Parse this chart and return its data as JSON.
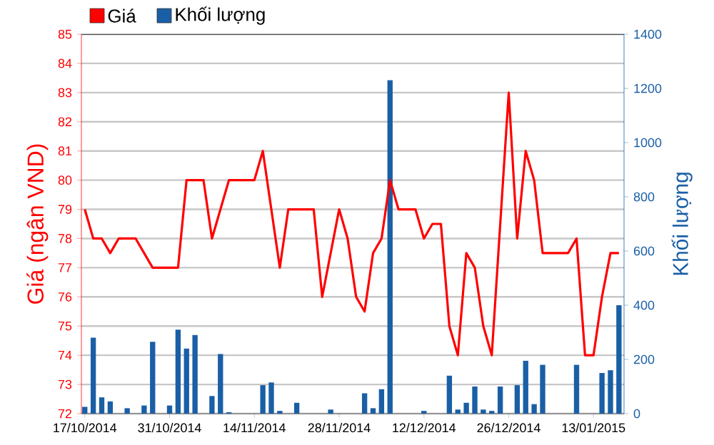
{
  "chart_data": {
    "type": "bar",
    "categories": [
      "17/10/2014",
      null,
      null,
      null,
      null,
      null,
      null,
      null,
      null,
      null,
      "31/10/2014",
      null,
      null,
      null,
      null,
      null,
      null,
      null,
      null,
      null,
      "14/11/2014",
      null,
      null,
      null,
      null,
      null,
      null,
      null,
      null,
      null,
      "28/11/2014",
      null,
      null,
      null,
      null,
      null,
      null,
      null,
      null,
      null,
      "12/12/2014",
      null,
      null,
      null,
      null,
      null,
      null,
      null,
      null,
      null,
      "26/12/2014",
      null,
      null,
      null,
      null,
      null,
      null,
      null,
      null,
      null,
      "13/01/2015",
      null,
      null,
      null
    ],
    "series": [
      {
        "name": "Giá",
        "type": "line",
        "color": "#ff0000",
        "values": [
          79,
          78,
          78,
          77.5,
          78,
          78,
          78,
          77.5,
          77,
          77,
          77,
          77,
          80,
          80,
          80,
          78,
          79,
          80,
          80,
          80,
          80,
          81,
          79,
          77,
          79,
          79,
          79,
          79,
          76,
          77.5,
          79,
          78,
          76,
          75.5,
          77.5,
          78,
          80,
          79,
          79,
          79,
          78,
          78.5,
          78.5,
          75,
          74,
          77.5,
          77,
          75,
          74,
          78.5,
          83,
          78,
          81,
          80,
          77.5,
          77.5,
          77.5,
          77.5,
          78,
          74,
          74,
          76,
          77.5,
          77.5
        ]
      },
      {
        "name": "Khối lượng",
        "type": "bar",
        "axis": "y2",
        "color": "#1a5fa6",
        "values": [
          25,
          280,
          60,
          45,
          null,
          20,
          null,
          30,
          265,
          null,
          30,
          310,
          240,
          290,
          null,
          65,
          220,
          5,
          null,
          null,
          null,
          105,
          115,
          10,
          null,
          40,
          null,
          null,
          null,
          15,
          null,
          null,
          null,
          75,
          20,
          90,
          1230,
          null,
          null,
          null,
          10,
          null,
          null,
          140,
          15,
          40,
          100,
          15,
          10,
          100,
          null,
          105,
          195,
          35,
          180,
          null,
          null,
          null,
          180,
          null,
          null,
          150,
          160,
          400
        ]
      }
    ],
    "ylabel": "Giá (ngân VND)",
    "y2label": "Khối lượng",
    "ylim": [
      72,
      85
    ],
    "yticks": [
      72,
      73,
      74,
      75,
      76,
      77,
      78,
      79,
      80,
      81,
      82,
      83,
      84,
      85
    ],
    "y2lim": [
      0,
      1400
    ],
    "y2ticks": [
      0,
      200,
      400,
      600,
      800,
      1000,
      1200,
      1400
    ],
    "grid": "y",
    "legend": "top left"
  }
}
